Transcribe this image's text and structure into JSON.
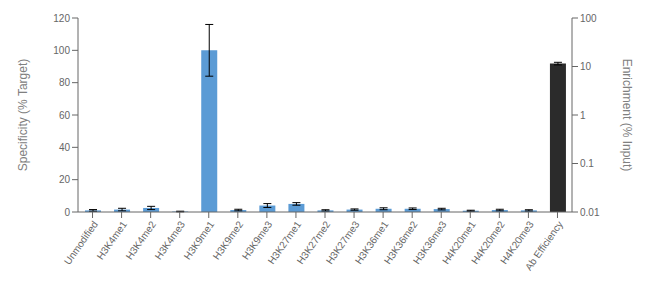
{
  "chart_data": {
    "type": "bar",
    "categories": [
      "Unmodified",
      "H3K4me1",
      "H3K4me2",
      "H3K4me3",
      "H3K9me1",
      "H3K9me2",
      "H3K9me3",
      "H3K27me1",
      "H3K27me2",
      "H3K27me3",
      "H3K36me1",
      "H3K36me2",
      "H3K36me3",
      "H4K20me1",
      "H4K20me2",
      "H4K20me3",
      "Ab Efficiency"
    ],
    "series": [
      {
        "color": "#5b9bd5",
        "values": [
          1.0,
          1.5,
          2.5,
          0.3,
          100.0,
          1.2,
          4.0,
          5.0,
          1.0,
          1.5,
          2.0,
          2.0,
          1.8,
          0.8,
          1.2,
          1.0,
          null
        ],
        "errors": [
          0.5,
          0.8,
          1.0,
          0.2,
          16.0,
          0.5,
          1.2,
          0.8,
          0.4,
          0.4,
          0.6,
          0.5,
          0.5,
          0.3,
          0.5,
          0.4,
          null
        ]
      },
      {
        "color": "#2b2b2b",
        "axis": "y2",
        "values": [
          null,
          null,
          null,
          null,
          null,
          null,
          null,
          null,
          null,
          null,
          null,
          null,
          null,
          null,
          null,
          null,
          11.5
        ],
        "errors": [
          null,
          null,
          null,
          null,
          null,
          null,
          null,
          null,
          null,
          null,
          null,
          null,
          null,
          null,
          null,
          null,
          0.7
        ]
      }
    ],
    "ylabel": "Specificity (% Target)",
    "y2label": "Enrichment (% Input)",
    "ylim": [
      0,
      120
    ],
    "yticks": [
      0,
      20,
      40,
      60,
      80,
      100,
      120
    ],
    "y2lim": [
      0.01,
      100
    ],
    "y2ticks": [
      0.01,
      0.1,
      1,
      10,
      100
    ],
    "log": "y2",
    "grid": false
  }
}
